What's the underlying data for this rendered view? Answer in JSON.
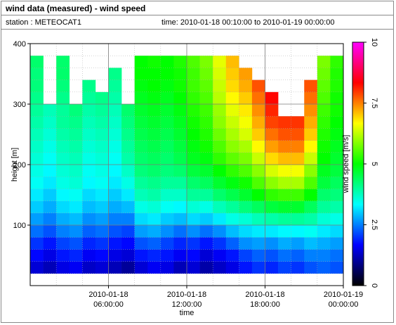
{
  "header": {
    "title": "wind data (measured) - wind speed",
    "station": "station : METEOCAT1",
    "time_range": "time: 2010-01-18 00:10:00 to 2010-01-19 00:00:00"
  },
  "chart_data": {
    "type": "heatmap",
    "title": "wind data (measured) - wind speed",
    "xlabel": "time",
    "ylabel": "height [m]",
    "colorbar_label": "wind speed [m/s]",
    "x_ticks": [
      {
        "line1": "2010-01-18",
        "line2": "06:00:00",
        "hour": 6
      },
      {
        "line1": "2010-01-18",
        "line2": "12:00:00",
        "hour": 12
      },
      {
        "line1": "2010-01-18",
        "line2": "18:00:00",
        "hour": 18
      },
      {
        "line1": "2010-01-19",
        "line2": "00:00:00",
        "hour": 24
      }
    ],
    "xlim_hours": [
      0,
      24
    ],
    "y_ticks": [
      100,
      200,
      300,
      400
    ],
    "ylim": [
      0,
      400
    ],
    "colorbar_ticks": [
      0,
      2.5,
      5,
      7.5,
      10
    ],
    "colorbar_range": [
      0,
      10
    ],
    "colormap": [
      "#000000",
      "#0000ff",
      "#00ffff",
      "#00ff00",
      "#ffff00",
      "#ff0000",
      "#ff00ff"
    ],
    "grid": true,
    "height_bins": [
      30,
      50,
      70,
      90,
      110,
      130,
      150,
      170,
      190,
      210,
      230,
      250,
      270,
      290,
      310,
      330,
      350,
      370
    ],
    "time_hours": [
      0.5,
      1.5,
      2.5,
      3.5,
      4.5,
      5.5,
      6.5,
      7.5,
      8.5,
      9.5,
      10.5,
      11.5,
      12.5,
      13.5,
      14.5,
      15.5,
      16.5,
      17.5,
      18.5,
      19.5,
      20.5,
      21.5,
      22.5,
      23.5
    ],
    "max_height_per_hour": [
      370,
      290,
      370,
      300,
      330,
      310,
      350,
      300,
      370,
      370,
      370,
      370,
      370,
      370,
      370,
      370,
      350,
      330,
      320,
      270,
      270,
      340,
      370,
      370
    ],
    "wind_speed": [
      [
        1.4,
        1.2,
        1.5,
        1.6,
        1.3,
        1.4,
        1.2,
        1.0,
        1.4,
        1.6,
        1.5,
        1.2,
        1.4,
        1.1,
        1.3,
        1.5,
        1.8,
        2.0,
        1.9,
        2.1,
        2.0,
        2.2,
        2.3,
        2.2
      ],
      [
        1.7,
        1.5,
        1.8,
        1.9,
        1.6,
        1.7,
        1.5,
        1.4,
        1.8,
        1.9,
        1.8,
        1.6,
        1.7,
        1.4,
        1.6,
        1.8,
        2.1,
        2.3,
        2.2,
        2.4,
        2.3,
        2.5,
        2.5,
        2.4
      ],
      [
        2.0,
        1.8,
        2.1,
        2.2,
        1.9,
        2.0,
        1.8,
        1.7,
        2.2,
        2.3,
        2.1,
        1.9,
        2.0,
        1.8,
        2.0,
        2.3,
        2.6,
        2.7,
        2.6,
        2.8,
        2.7,
        2.9,
        2.8,
        2.7
      ],
      [
        2.4,
        2.2,
        2.5,
        2.6,
        2.3,
        2.4,
        2.2,
        2.1,
        2.7,
        2.8,
        2.6,
        2.4,
        2.6,
        2.4,
        2.6,
        2.9,
        3.1,
        3.2,
        3.2,
        3.3,
        3.3,
        3.4,
        3.2,
        3.1
      ],
      [
        2.7,
        2.5,
        2.8,
        2.9,
        2.6,
        2.7,
        2.5,
        2.5,
        3.1,
        3.2,
        3.0,
        2.9,
        3.1,
        3.0,
        3.2,
        3.5,
        3.6,
        3.8,
        3.9,
        4.0,
        4.0,
        3.9,
        3.6,
        3.5
      ],
      [
        3.0,
        2.8,
        3.1,
        3.2,
        2.9,
        3.0,
        2.8,
        2.9,
        3.5,
        3.6,
        3.4,
        3.3,
        3.6,
        3.5,
        3.8,
        4.0,
        4.2,
        4.4,
        4.6,
        4.7,
        4.7,
        4.4,
        4.0,
        3.9
      ],
      [
        3.2,
        3.0,
        3.3,
        3.4,
        3.1,
        3.2,
        3.0,
        3.2,
        3.8,
        3.9,
        3.7,
        3.7,
        4.0,
        4.0,
        4.3,
        4.5,
        4.7,
        5.0,
        5.3,
        5.4,
        5.4,
        5.0,
        4.3,
        4.2
      ],
      [
        3.4,
        3.2,
        3.5,
        3.6,
        3.3,
        3.4,
        3.2,
        3.5,
        4.0,
        4.1,
        4.0,
        4.0,
        4.3,
        4.4,
        4.7,
        4.9,
        5.1,
        5.5,
        5.9,
        6.1,
        6.1,
        5.5,
        4.6,
        4.4
      ],
      [
        3.5,
        3.3,
        3.6,
        3.7,
        3.4,
        3.5,
        3.3,
        3.7,
        4.2,
        4.3,
        4.2,
        4.3,
        4.6,
        4.7,
        5.0,
        5.3,
        5.5,
        5.9,
        6.4,
        6.6,
        6.6,
        5.9,
        4.8,
        4.6
      ],
      [
        3.6,
        3.4,
        3.7,
        3.8,
        3.5,
        3.6,
        3.4,
        3.9,
        4.3,
        4.4,
        4.3,
        4.5,
        4.8,
        4.9,
        5.3,
        5.6,
        5.8,
        6.3,
        6.9,
        7.1,
        7.1,
        6.3,
        5.0,
        4.7
      ],
      [
        3.7,
        3.5,
        3.8,
        3.9,
        3.6,
        3.7,
        3.5,
        4.0,
        4.4,
        4.5,
        4.4,
        4.6,
        4.9,
        5.1,
        5.5,
        5.9,
        6.1,
        6.7,
        7.3,
        7.5,
        7.5,
        6.7,
        5.1,
        4.8
      ],
      [
        3.8,
        3.6,
        3.9,
        4.0,
        3.7,
        3.8,
        3.6,
        4.1,
        4.5,
        4.6,
        4.5,
        4.7,
        5.0,
        5.2,
        5.7,
        6.1,
        6.4,
        7.0,
        7.6,
        7.8,
        7.8,
        7.0,
        5.2,
        4.9
      ],
      [
        3.9,
        3.7,
        4.0,
        4.1,
        3.8,
        3.9,
        3.7,
        4.2,
        4.6,
        4.7,
        4.6,
        4.8,
        5.1,
        5.3,
        5.9,
        6.3,
        6.6,
        7.2,
        7.9,
        8.0,
        8.0,
        7.2,
        5.3,
        5.0
      ],
      [
        4.0,
        3.8,
        4.0,
        4.2,
        3.9,
        4.0,
        3.8,
        4.3,
        4.7,
        4.8,
        4.7,
        4.9,
        5.2,
        5.4,
        6.0,
        6.5,
        6.8,
        7.4,
        8.1,
        8.2,
        8.2,
        7.4,
        5.4,
        5.1
      ],
      [
        4.1,
        3.9,
        4.1,
        4.3,
        4.0,
        4.1,
        3.9,
        4.3,
        4.8,
        4.9,
        4.8,
        5.0,
        5.3,
        5.5,
        6.2,
        6.7,
        7.0,
        7.6,
        8.3,
        8.4,
        8.4,
        7.6,
        5.5,
        5.1
      ],
      [
        4.2,
        4.0,
        4.2,
        4.4,
        4.1,
        4.2,
        4.0,
        4.4,
        4.9,
        5.0,
        4.9,
        5.1,
        5.4,
        5.6,
        6.3,
        6.9,
        7.2,
        7.8,
        8.5,
        8.6,
        8.6,
        7.8,
        5.6,
        5.2
      ],
      [
        4.2,
        4.1,
        4.3,
        4.4,
        4.1,
        4.2,
        4.1,
        4.4,
        5.0,
        5.0,
        5.0,
        5.1,
        5.4,
        5.7,
        6.4,
        7.0,
        7.3,
        7.9,
        8.7,
        8.7,
        8.7,
        7.9,
        5.7,
        5.2
      ],
      [
        4.3,
        4.2,
        4.3,
        4.5,
        4.2,
        4.3,
        4.1,
        4.5,
        5.0,
        5.1,
        5.0,
        5.2,
        5.5,
        5.8,
        6.5,
        7.1,
        7.4,
        8.0,
        8.8,
        8.8,
        8.8,
        8.0,
        5.8,
        5.3
      ]
    ]
  }
}
